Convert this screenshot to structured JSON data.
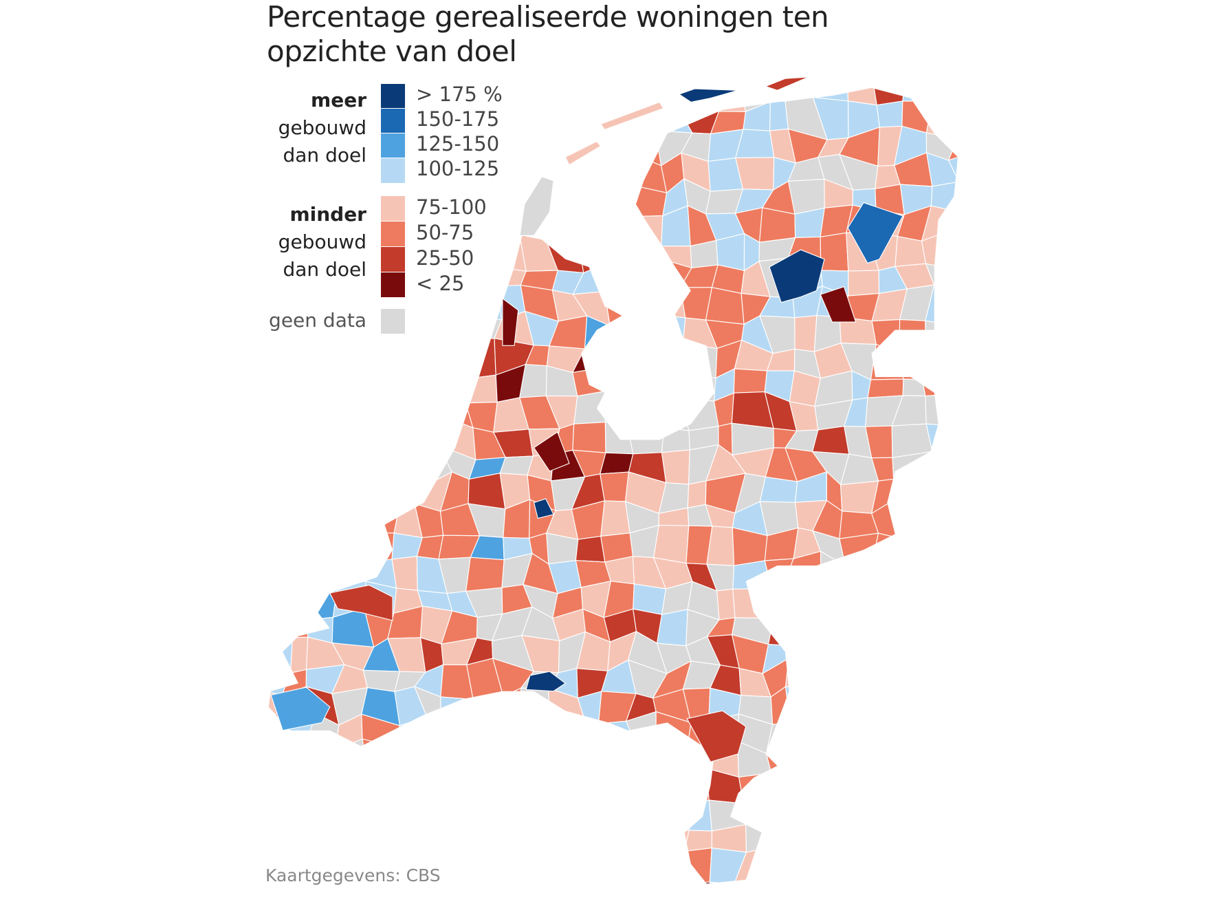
{
  "title": "Percentage gerealiseerde woningen ten opzichte van doel",
  "legend": {
    "more_group": {
      "bold": "meer",
      "line2": "gebouwd",
      "line3": "dan doel"
    },
    "less_group": {
      "bold": "minder",
      "line2": "gebouwd",
      "line3": "dan doel"
    },
    "classes": [
      {
        "label": "> 175 %",
        "color": "#0a3a78"
      },
      {
        "label": "150-175",
        "color": "#1b68b3"
      },
      {
        "label": "125-150",
        "color": "#4ea2e0"
      },
      {
        "label": "100-125",
        "color": "#b5d9f4"
      },
      {
        "label": "75-100",
        "color": "#f6c4b5"
      },
      {
        "label": "50-75",
        "color": "#ee7b5f"
      },
      {
        "label": "25-50",
        "color": "#c33b2b"
      },
      {
        "label": "< 25",
        "color": "#7a0b0c"
      }
    ],
    "no_data": {
      "label": "geen data",
      "color": "#d9d9d9"
    }
  },
  "footer": "Kaartgegevens: CBS"
}
